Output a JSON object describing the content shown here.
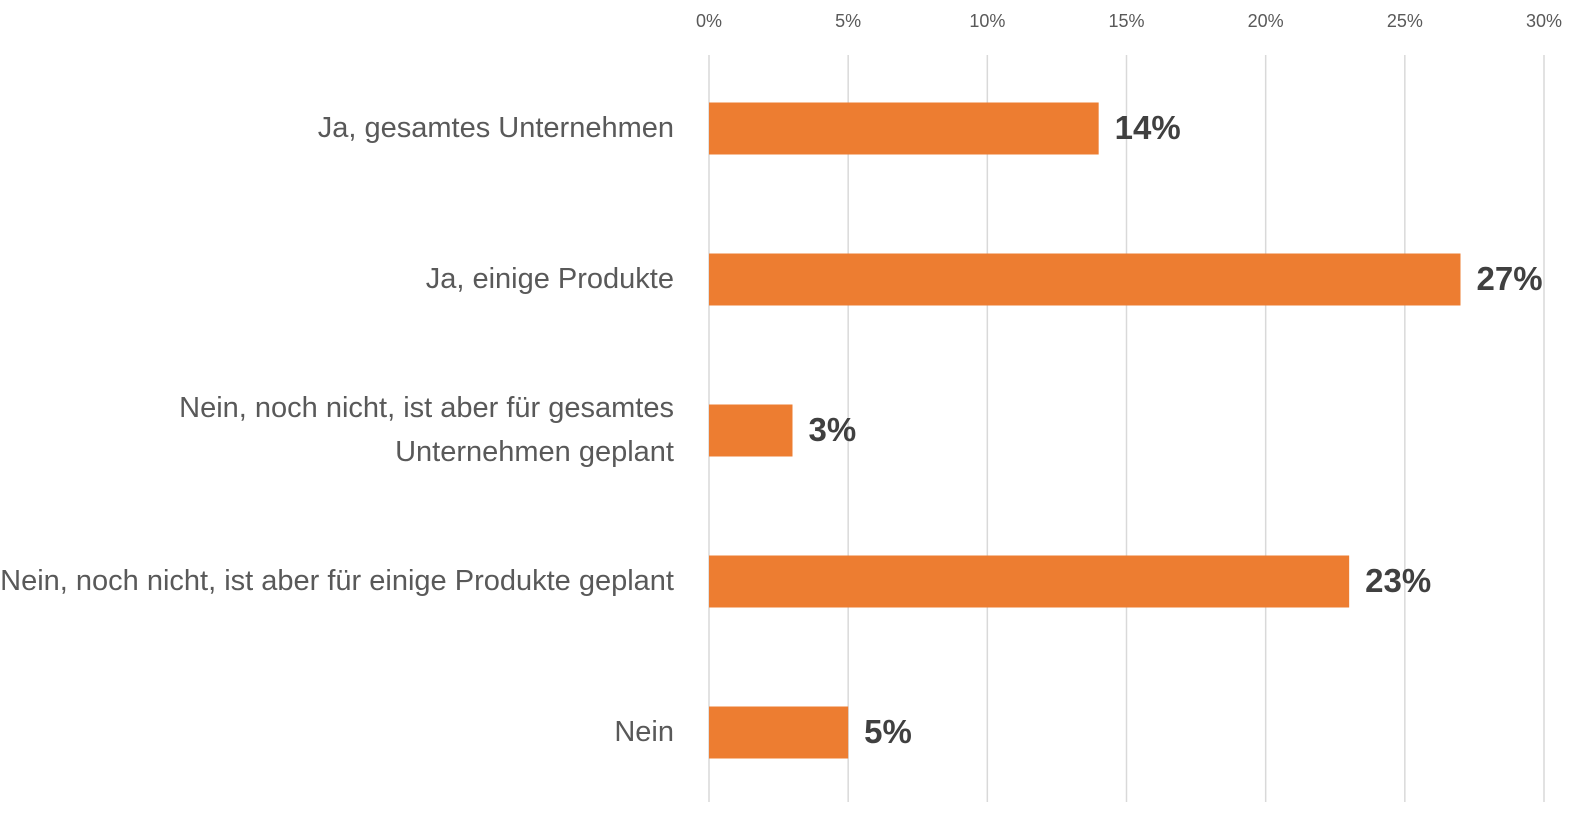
{
  "chart_data": {
    "type": "bar",
    "orientation": "horizontal",
    "categories": [
      "Ja, gesamtes Unternehmen",
      "Ja, einige Produkte",
      "Nein, noch nicht, ist aber für gesamtes Unternehmen geplant",
      "Nein, noch nicht, ist aber für einige Produkte geplant",
      "Nein"
    ],
    "values": [
      14,
      27,
      3,
      23,
      5
    ],
    "value_labels": [
      "14%",
      "27%",
      "3%",
      "23%",
      "5%"
    ],
    "color": "#ed7d31",
    "xlim": [
      0,
      30
    ],
    "xticks": [
      {
        "value": 0,
        "label": "0%"
      },
      {
        "value": 5,
        "label": "5%"
      },
      {
        "value": 10,
        "label": "10%"
      },
      {
        "value": 15,
        "label": "15%"
      },
      {
        "value": 20,
        "label": "20%"
      },
      {
        "value": 25,
        "label": "25%"
      },
      {
        "value": 30,
        "label": "30%"
      }
    ],
    "grid": true
  }
}
